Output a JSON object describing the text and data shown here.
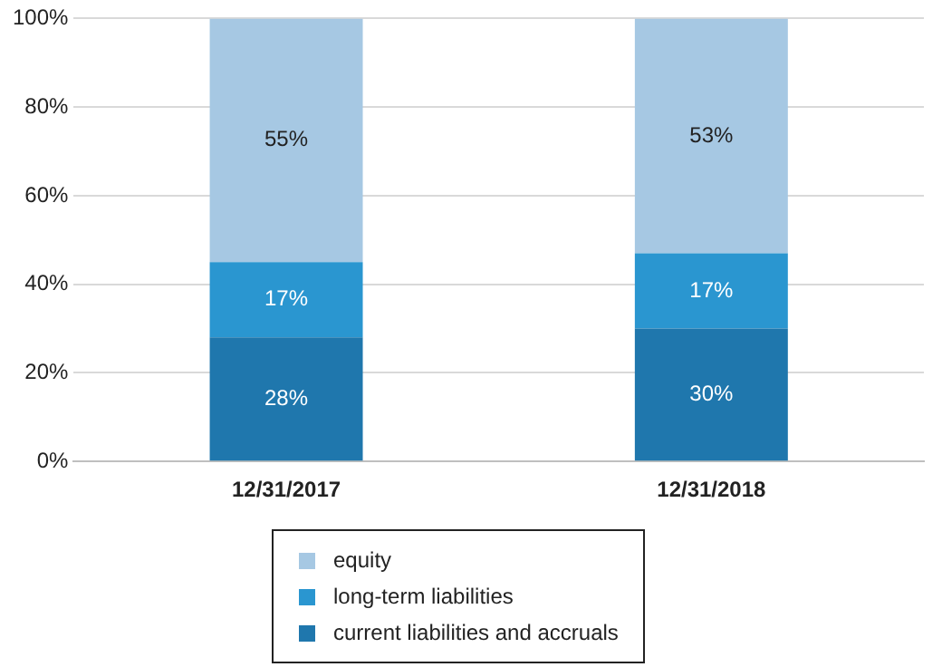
{
  "chart_data": {
    "type": "bar",
    "stacked": true,
    "categories": [
      "12/31/2017",
      "12/31/2018"
    ],
    "series": [
      {
        "name": "current liabilities and accruals",
        "color": "#1f77ad",
        "values": [
          28,
          30
        ],
        "value_labels": [
          "28%",
          "30%"
        ]
      },
      {
        "name": "long-term liabilities",
        "color": "#2a96d0",
        "values": [
          17,
          17
        ],
        "value_labels": [
          "17%",
          "17%"
        ]
      },
      {
        "name": "equity",
        "color": "#a6c8e3",
        "values": [
          55,
          53
        ],
        "value_labels": [
          "55%",
          "53%"
        ]
      }
    ],
    "ylim": [
      0,
      100
    ],
    "yticks": [
      {
        "value": 0,
        "label": "0%"
      },
      {
        "value": 20,
        "label": "20%"
      },
      {
        "value": 40,
        "label": "40%"
      },
      {
        "value": 60,
        "label": "60%"
      },
      {
        "value": 80,
        "label": "80%"
      },
      {
        "value": 100,
        "label": "100%"
      }
    ],
    "grid": "y",
    "legend": "bottom"
  }
}
